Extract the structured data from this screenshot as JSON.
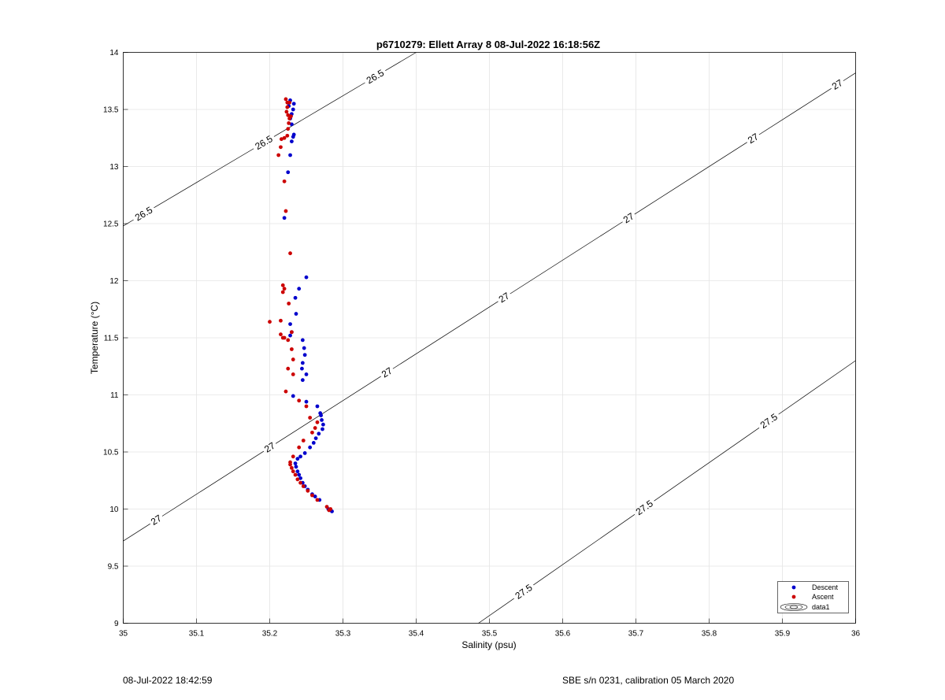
{
  "chart_data": {
    "type": "scatter",
    "title": "p6710279: Ellett Array 8 08-Jul-2022 16:18:56Z",
    "xlabel": "Salinity (psu)",
    "ylabel": "Temperature (°C)",
    "xlim": [
      35,
      36
    ],
    "ylim": [
      9,
      14
    ],
    "xticks": [
      "35",
      "35.1",
      "35.2",
      "35.3",
      "35.4",
      "35.5",
      "35.6",
      "35.7",
      "35.8",
      "35.9",
      "36"
    ],
    "yticks": [
      "9",
      "9.5",
      "10",
      "10.5",
      "11",
      "11.5",
      "12",
      "12.5",
      "13",
      "13.5",
      "14"
    ],
    "grid": true,
    "legend_position": "bottom-right",
    "legend": [
      "Descent",
      "Ascent",
      "data1"
    ],
    "series": [
      {
        "name": "Descent",
        "color": "#0000cc",
        "points": [
          [
            35.285,
            9.98
          ],
          [
            35.283,
            9.99
          ],
          [
            35.28,
            10.0
          ],
          [
            35.268,
            10.08
          ],
          [
            35.262,
            10.11
          ],
          [
            35.258,
            10.13
          ],
          [
            35.252,
            10.17
          ],
          [
            35.248,
            10.2
          ],
          [
            35.245,
            10.23
          ],
          [
            35.242,
            10.27
          ],
          [
            35.24,
            10.3
          ],
          [
            35.238,
            10.33
          ],
          [
            35.236,
            10.37
          ],
          [
            35.235,
            10.4
          ],
          [
            35.238,
            10.44
          ],
          [
            35.242,
            10.46
          ],
          [
            35.248,
            10.49
          ],
          [
            35.255,
            10.54
          ],
          [
            35.26,
            10.58
          ],
          [
            35.263,
            10.62
          ],
          [
            35.267,
            10.66
          ],
          [
            35.272,
            10.7
          ],
          [
            35.273,
            10.74
          ],
          [
            35.271,
            10.78
          ],
          [
            35.27,
            10.82
          ],
          [
            35.269,
            10.84
          ],
          [
            35.265,
            10.9
          ],
          [
            35.25,
            10.94
          ],
          [
            35.232,
            10.99
          ],
          [
            35.245,
            11.13
          ],
          [
            35.25,
            11.18
          ],
          [
            35.244,
            11.23
          ],
          [
            35.245,
            11.28
          ],
          [
            35.248,
            11.35
          ],
          [
            35.247,
            11.41
          ],
          [
            35.245,
            11.48
          ],
          [
            35.228,
            11.52
          ],
          [
            35.23,
            11.55
          ],
          [
            35.228,
            11.62
          ],
          [
            35.236,
            11.71
          ],
          [
            35.235,
            11.85
          ],
          [
            35.24,
            11.93
          ],
          [
            35.25,
            12.03
          ],
          [
            35.22,
            12.55
          ],
          [
            35.225,
            12.95
          ],
          [
            35.228,
            13.1
          ],
          [
            35.23,
            13.22
          ],
          [
            35.232,
            13.26
          ],
          [
            35.233,
            13.28
          ],
          [
            35.23,
            13.37
          ],
          [
            35.228,
            13.42
          ],
          [
            35.23,
            13.46
          ],
          [
            35.232,
            13.5
          ],
          [
            35.233,
            13.55
          ],
          [
            35.228,
            13.58
          ],
          [
            35.226,
            13.53
          ]
        ]
      },
      {
        "name": "Ascent",
        "color": "#cc0000",
        "points": [
          [
            35.283,
            10.0
          ],
          [
            35.281,
            9.99
          ],
          [
            35.278,
            10.02
          ],
          [
            35.265,
            10.08
          ],
          [
            35.258,
            10.12
          ],
          [
            35.252,
            10.16
          ],
          [
            35.246,
            10.2
          ],
          [
            35.242,
            10.23
          ],
          [
            35.238,
            10.26
          ],
          [
            35.235,
            10.3
          ],
          [
            35.232,
            10.33
          ],
          [
            35.23,
            10.36
          ],
          [
            35.228,
            10.39
          ],
          [
            35.228,
            10.41
          ],
          [
            35.232,
            10.46
          ],
          [
            35.24,
            10.54
          ],
          [
            35.246,
            10.6
          ],
          [
            35.258,
            10.67
          ],
          [
            35.262,
            10.71
          ],
          [
            35.265,
            10.76
          ],
          [
            35.255,
            10.8
          ],
          [
            35.25,
            10.9
          ],
          [
            35.24,
            10.95
          ],
          [
            35.222,
            11.03
          ],
          [
            35.232,
            11.18
          ],
          [
            35.225,
            11.23
          ],
          [
            35.232,
            11.31
          ],
          [
            35.23,
            11.4
          ],
          [
            35.225,
            11.48
          ],
          [
            35.218,
            11.5
          ],
          [
            35.22,
            11.5
          ],
          [
            35.215,
            11.53
          ],
          [
            35.23,
            11.55
          ],
          [
            35.2,
            11.64
          ],
          [
            35.215,
            11.65
          ],
          [
            35.226,
            11.8
          ],
          [
            35.218,
            11.9
          ],
          [
            35.22,
            11.93
          ],
          [
            35.218,
            11.96
          ],
          [
            35.228,
            12.24
          ],
          [
            35.222,
            12.61
          ],
          [
            35.22,
            12.87
          ],
          [
            35.212,
            13.1
          ],
          [
            35.215,
            13.17
          ],
          [
            35.216,
            13.24
          ],
          [
            35.22,
            13.25
          ],
          [
            35.224,
            13.27
          ],
          [
            35.225,
            13.33
          ],
          [
            35.226,
            13.38
          ],
          [
            35.227,
            13.42
          ],
          [
            35.225,
            13.45
          ],
          [
            35.223,
            13.48
          ],
          [
            35.224,
            13.52
          ],
          [
            35.224,
            13.56
          ],
          [
            35.222,
            13.59
          ],
          [
            35.227,
            13.56
          ],
          [
            35.229,
            13.44
          ]
        ]
      }
    ],
    "contours": [
      {
        "level": "26.5",
        "labels": [
          "26.5",
          "26.5",
          "26.5"
        ],
        "line": [
          [
            35.0,
            12.48
          ],
          [
            35.4,
            14.0
          ]
        ]
      },
      {
        "level": "27",
        "labels": [
          "27",
          "27",
          "27",
          "27",
          "27",
          "27",
          "27"
        ],
        "line": [
          [
            35.0,
            9.72
          ],
          [
            36.0,
            13.82
          ]
        ]
      },
      {
        "level": "27.5",
        "labels": [
          "27.5",
          "27.5",
          "27.5"
        ],
        "line": [
          [
            35.485,
            9.0
          ],
          [
            36.0,
            11.3
          ]
        ]
      }
    ]
  },
  "footer": {
    "left": "08-Jul-2022 18:42:59",
    "right": "SBE s/n 0231, calibration 05 March 2020"
  }
}
